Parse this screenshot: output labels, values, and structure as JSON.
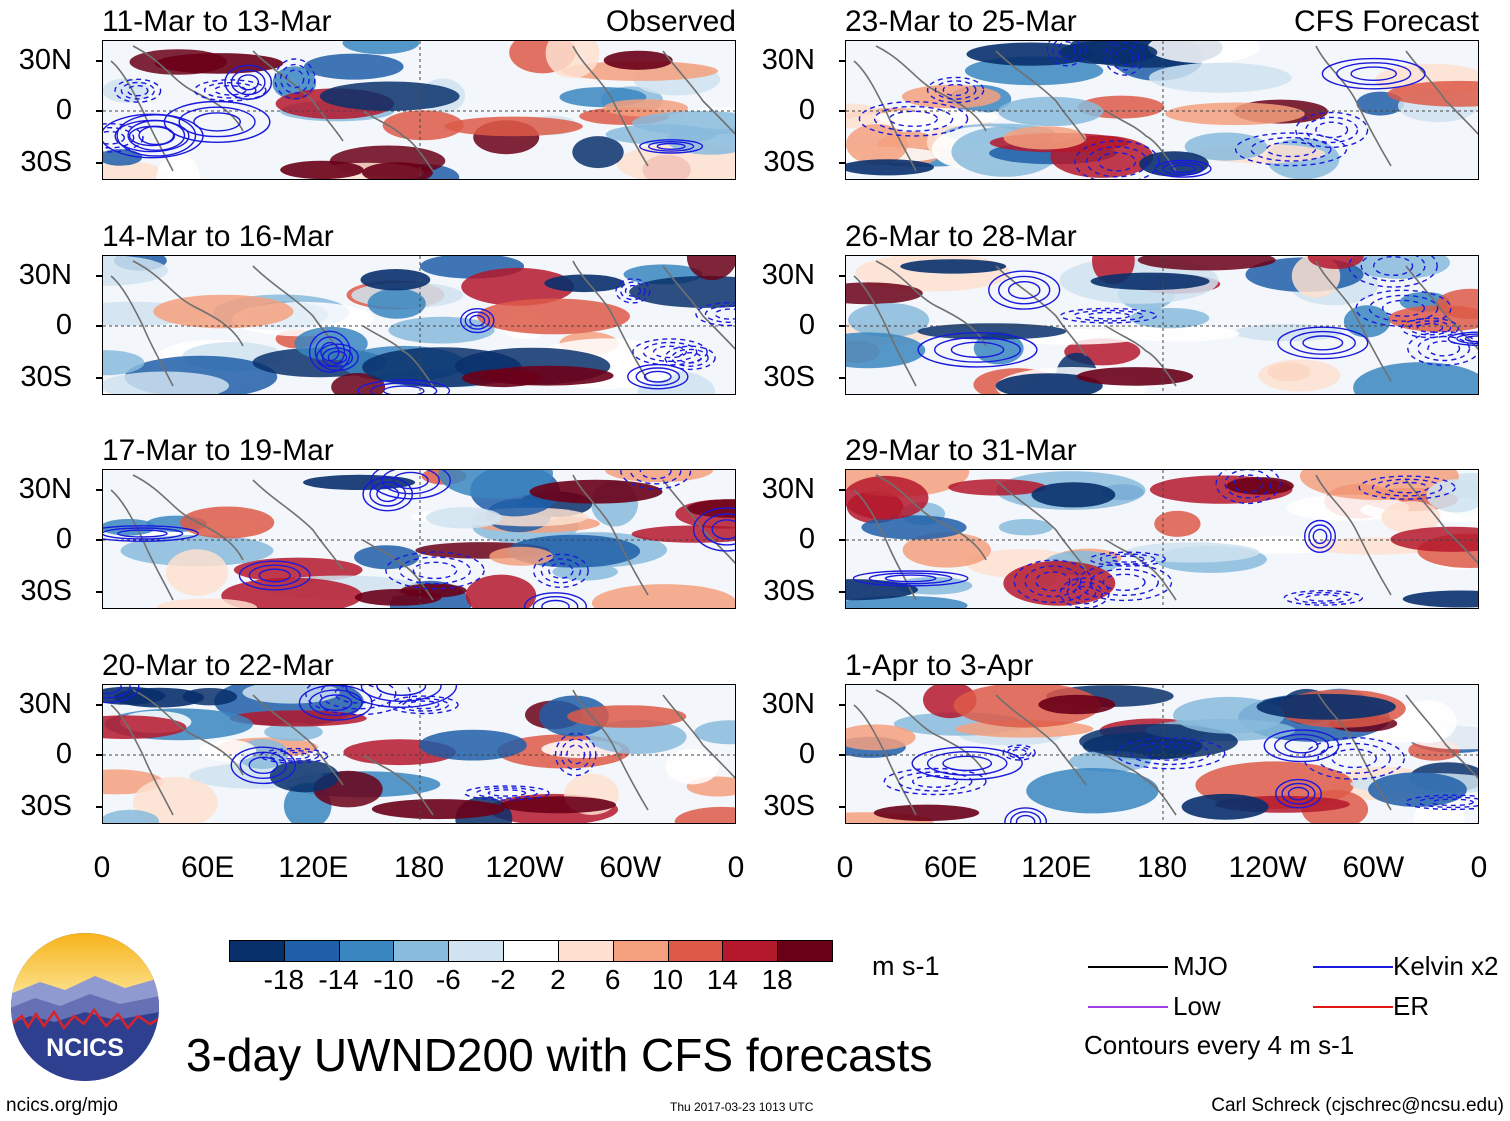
{
  "chart_data": {
    "type": "heatmap",
    "title": "3-day UWND200 with CFS forecasts",
    "units": "m s-1",
    "contour_note": "Contours every 4 m s-1",
    "x_ticks": [
      "0",
      "60E",
      "120E",
      "180",
      "120W",
      "60W",
      "0"
    ],
    "y_ticks": [
      "30N",
      "0",
      "30S"
    ],
    "columns": [
      {
        "label": "Observed",
        "panels": [
          {
            "title": "11-Mar to 13-Mar",
            "label": "Observed"
          },
          {
            "title": "14-Mar to 16-Mar",
            "label": ""
          },
          {
            "title": "17-Mar to 19-Mar",
            "label": ""
          },
          {
            "title": "20-Mar to 22-Mar",
            "label": ""
          }
        ]
      },
      {
        "label": "CFS Forecast",
        "panels": [
          {
            "title": "23-Mar to 25-Mar",
            "label": "CFS Forecast"
          },
          {
            "title": "26-Mar to 28-Mar",
            "label": ""
          },
          {
            "title": "29-Mar to 31-Mar",
            "label": ""
          },
          {
            "title": "1-Apr to 3-Apr",
            "label": ""
          }
        ]
      }
    ],
    "colorbar": {
      "ticks": [
        "-18",
        "-14",
        "-10",
        "-6",
        "-2",
        "2",
        "6",
        "10",
        "14",
        "18"
      ],
      "colors": [
        "#08306b",
        "#1f5ea8",
        "#3a86c0",
        "#88bbdc",
        "#cfe3f0",
        "#ffffff",
        "#fde0d0",
        "#f4a07e",
        "#dd5a48",
        "#b4182b",
        "#6a0018"
      ]
    },
    "legend": [
      {
        "name": "MJO",
        "color": "#000000"
      },
      {
        "name": "Kelvin x2",
        "color": "#1a1adc"
      },
      {
        "name": "Low",
        "color": "#a040e0"
      },
      {
        "name": "ER",
        "color": "#e01818"
      }
    ]
  },
  "footer": {
    "logo_text": "NCICS",
    "url": "ncics.org/mjo",
    "timestamp": "Thu 2017-03-23 1013 UTC",
    "author": "Carl Schreck (cjschrec@ncsu.edu)"
  }
}
